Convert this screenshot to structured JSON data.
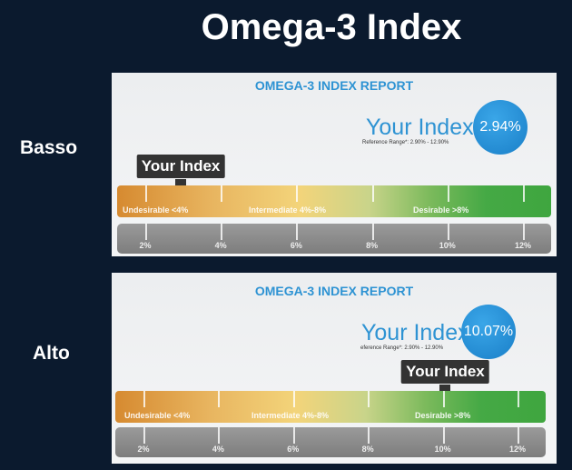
{
  "title": "Omega-3 Index",
  "scale": {
    "min": 2,
    "max": 12,
    "ticks": [
      "2%",
      "4%",
      "6%",
      "8%",
      "10%",
      "12%"
    ]
  },
  "zones": [
    "Undesirable <4%",
    "Intermediate 4%-8%",
    "Desirable >8%"
  ],
  "panels": [
    {
      "side_label": "Basso",
      "report_title": "OMEGA-3 INDEX REPORT",
      "your_index_label": "Your Index",
      "value_text": "2.94%",
      "value": 2.94,
      "reference": "Reference Range*: 2.90% - 12.90%",
      "callout": "Your Index"
    },
    {
      "side_label": "Alto",
      "report_title": "OMEGA-3 INDEX REPORT",
      "your_index_label": "Your Index",
      "value_text": "10.07%",
      "value": 10.07,
      "reference": "eference Range*: 2.90% - 12.90%",
      "callout": "Your Index"
    }
  ]
}
